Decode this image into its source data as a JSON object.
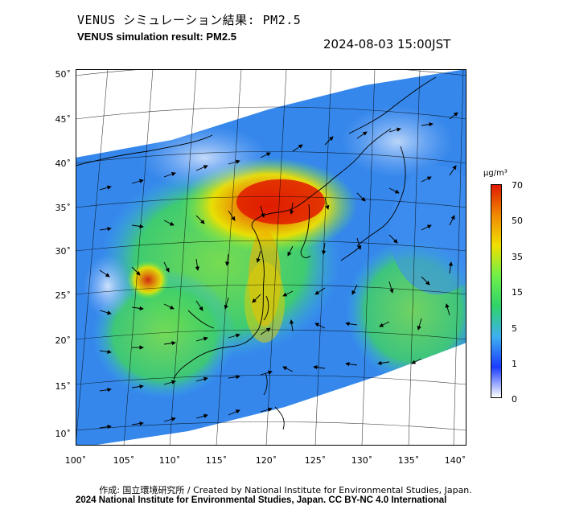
{
  "title": {
    "jp": "VENUS シミュレーション結果: PM2.5",
    "en": "VENUS simulation result: PM2.5",
    "timestamp": "2024-08-03 15:00JST"
  },
  "axes": {
    "lat_labels": [
      "50˚",
      "45˚",
      "40˚",
      "35˚",
      "30˚",
      "25˚",
      "20˚",
      "15˚",
      "10˚"
    ],
    "lon_labels": [
      "100˚",
      "105˚",
      "110˚",
      "115˚",
      "120˚",
      "125˚",
      "130˚",
      "135˚",
      "140˚"
    ]
  },
  "colorbar": {
    "unit": "μg/m³",
    "ticks": [
      "70",
      "50",
      "35",
      "15",
      "5",
      "1",
      "0"
    ],
    "colors": [
      "#ffffff",
      "#1a3cff",
      "#3fb0f0",
      "#2fd36a",
      "#6ef04a",
      "#f0e000",
      "#f08a00",
      "#e01a00"
    ]
  },
  "credits": {
    "line1": "作成: 国立環境研究所 / Created by National Institute for Environmental Studies, Japan.",
    "line2": "2024 National Institute for Environmental Studies, Japan. CC BY-NC 4.0 International"
  }
}
